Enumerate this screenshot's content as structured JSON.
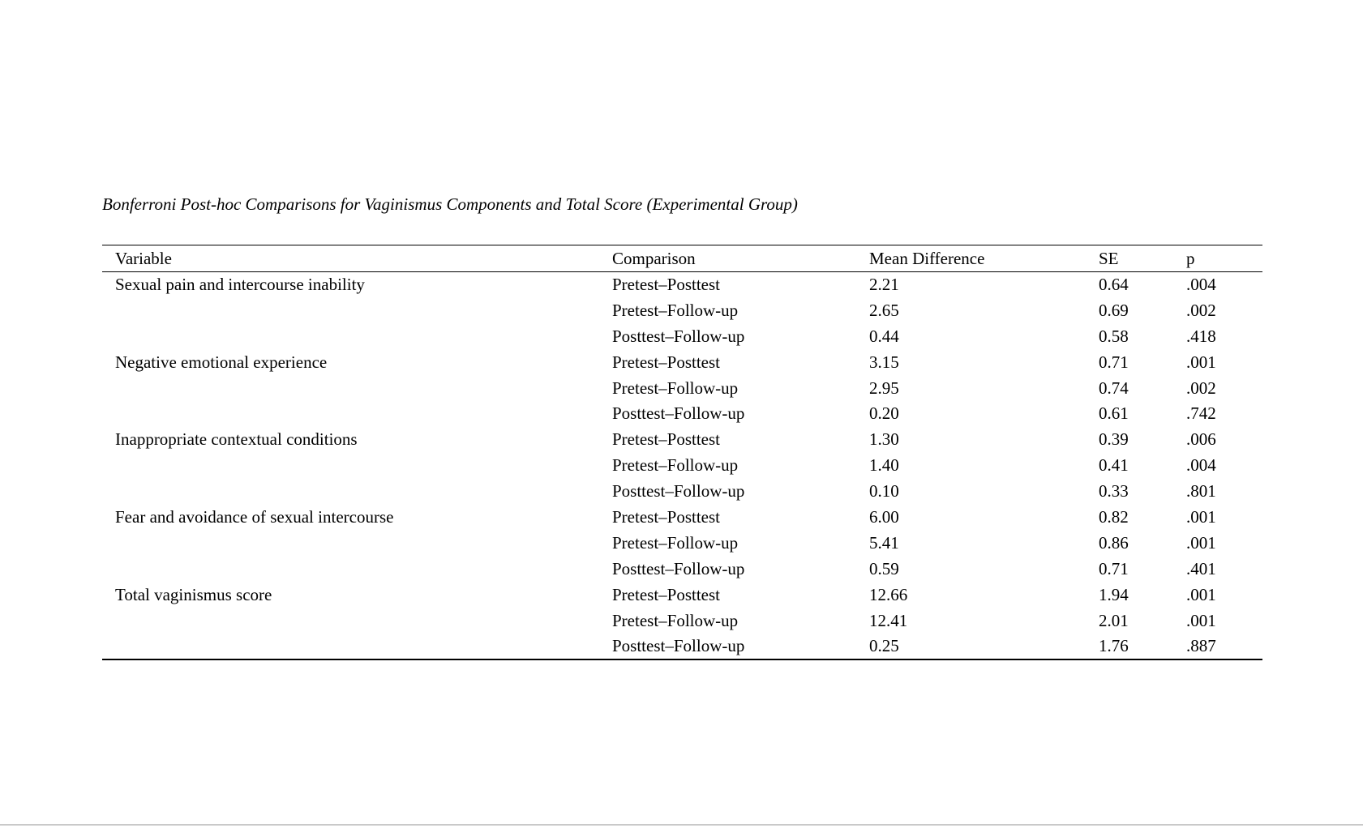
{
  "page": {
    "title": "Bonferroni Post-hoc Comparisons for Vaginismus Components and Total Score (Experimental Group)"
  },
  "table": {
    "columns": [
      "Variable",
      "Comparison",
      "Mean Difference",
      "SE",
      "p"
    ],
    "groups": [
      {
        "variable": "Sexual pain and intercourse inability",
        "comparisons": [
          {
            "label": "Pretest–Posttest",
            "mean_difference": "2.21",
            "se": "0.64",
            "p": ".004"
          },
          {
            "label": "Pretest–Follow-up",
            "mean_difference": "2.65",
            "se": "0.69",
            "p": ".002"
          },
          {
            "label": "Posttest–Follow-up",
            "mean_difference": "0.44",
            "se": "0.58",
            "p": ".418"
          }
        ]
      },
      {
        "variable": "Negative emotional experience",
        "comparisons": [
          {
            "label": "Pretest–Posttest",
            "mean_difference": "3.15",
            "se": "0.71",
            "p": ".001"
          },
          {
            "label": "Pretest–Follow-up",
            "mean_difference": "2.95",
            "se": "0.74",
            "p": ".002"
          },
          {
            "label": "Posttest–Follow-up",
            "mean_difference": "0.20",
            "se": "0.61",
            "p": ".742"
          }
        ]
      },
      {
        "variable": "Inappropriate contextual conditions",
        "comparisons": [
          {
            "label": "Pretest–Posttest",
            "mean_difference": "1.30",
            "se": "0.39",
            "p": ".006"
          },
          {
            "label": "Pretest–Follow-up",
            "mean_difference": "1.40",
            "se": "0.41",
            "p": ".004"
          },
          {
            "label": "Posttest–Follow-up",
            "mean_difference": "0.10",
            "se": "0.33",
            "p": ".801"
          }
        ]
      },
      {
        "variable": "Fear and avoidance of sexual intercourse",
        "comparisons": [
          {
            "label": "Pretest–Posttest",
            "mean_difference": "6.00",
            "se": "0.82",
            "p": ".001"
          },
          {
            "label": "Pretest–Follow-up",
            "mean_difference": "5.41",
            "se": "0.86",
            "p": ".001"
          },
          {
            "label": "Posttest–Follow-up",
            "mean_difference": "0.59",
            "se": "0.71",
            "p": ".401"
          }
        ]
      },
      {
        "variable": "Total vaginismus score",
        "comparisons": [
          {
            "label": "Pretest–Posttest",
            "mean_difference": "12.66",
            "se": "1.94",
            "p": ".001"
          },
          {
            "label": "Pretest–Follow-up",
            "mean_difference": "12.41",
            "se": "2.01",
            "p": ".001"
          },
          {
            "label": "Posttest–Follow-up",
            "mean_difference": "0.25",
            "se": "1.76",
            "p": ".887"
          }
        ]
      }
    ]
  },
  "colors": {
    "text": "#000000",
    "table_rule": "#000000",
    "page_edge_line": "#c9c9c9",
    "background": "#ffffff"
  }
}
